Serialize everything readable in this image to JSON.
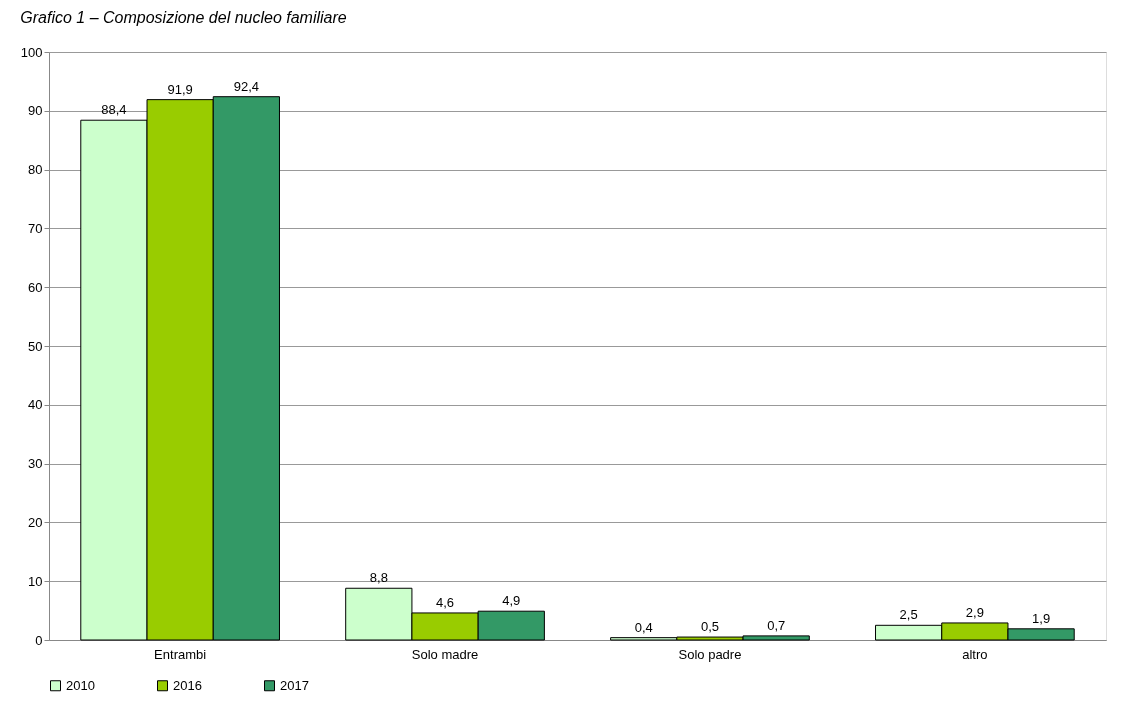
{
  "chart_data": {
    "type": "bar",
    "title": "Grafico 1 – Composizione del nucleo familiare",
    "categories": [
      "Entrambi",
      "Solo madre",
      "Solo padre",
      "altro"
    ],
    "series": [
      {
        "name": "2010",
        "color": "#ccffcc",
        "values": [
          88.4,
          8.8,
          0.4,
          2.5
        ],
        "value_labels": [
          "88,4",
          "8,8",
          "0,4",
          "2,5"
        ]
      },
      {
        "name": "2016",
        "color": "#99cc00",
        "values": [
          91.9,
          4.6,
          0.5,
          2.9
        ],
        "value_labels": [
          "91,9",
          "4,6",
          "0,5",
          "2,9"
        ]
      },
      {
        "name": "2017",
        "color": "#339966",
        "values": [
          92.4,
          4.9,
          0.7,
          1.9
        ],
        "value_labels": [
          "92,4",
          "4,9",
          "0,7",
          "1,9"
        ]
      }
    ],
    "ylim": [
      0,
      100
    ],
    "yticks": [
      0,
      10,
      20,
      30,
      40,
      50,
      60,
      70,
      80,
      90,
      100
    ],
    "grid": "y",
    "legend": "bottom"
  }
}
